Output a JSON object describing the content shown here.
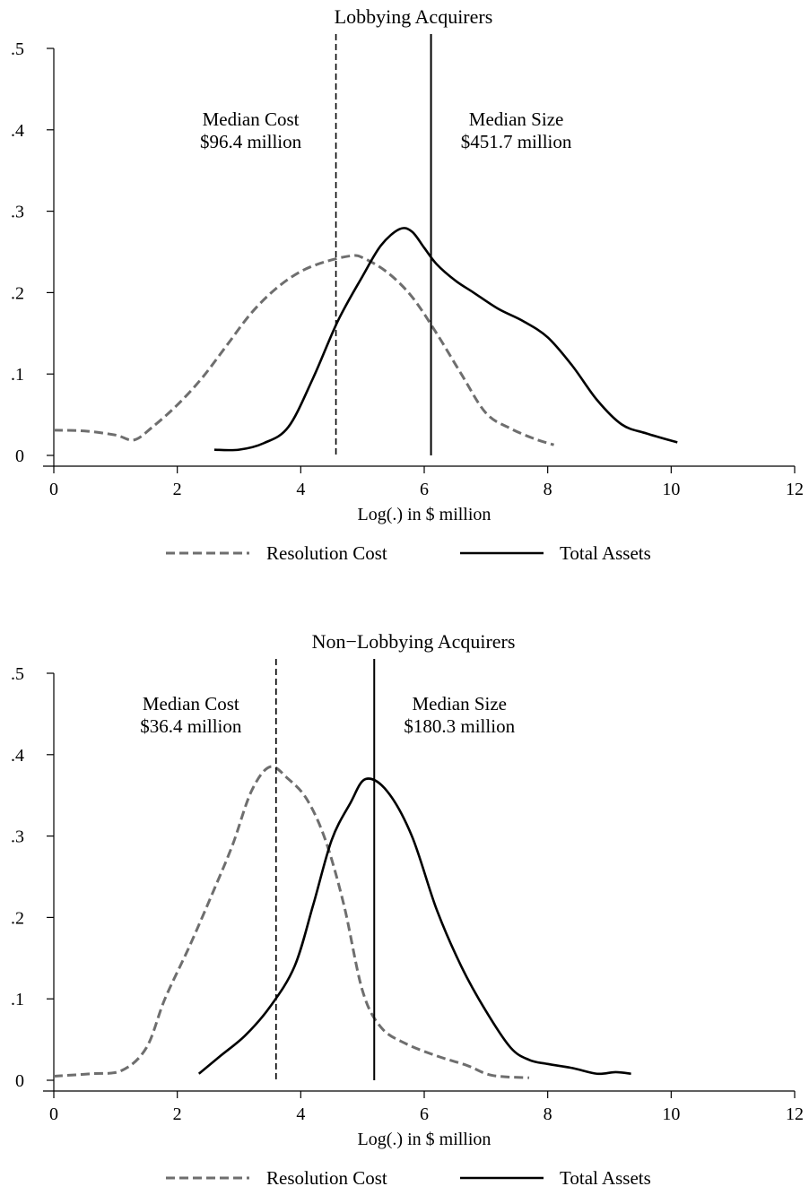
{
  "chart_data": [
    {
      "type": "line",
      "title": "Lobbying Acquirers",
      "xlabel": "Log(.) in $ million",
      "ylabel": "",
      "xlim": [
        0,
        12
      ],
      "ylim": [
        0,
        0.5
      ],
      "xticks": [
        0,
        2,
        4,
        6,
        8,
        10,
        12
      ],
      "xtick_labels": [
        "0",
        "2",
        "4",
        "6",
        "8",
        "10",
        "12"
      ],
      "yticks": [
        0,
        0.1,
        0.2,
        0.3,
        0.4,
        0.5
      ],
      "ytick_labels": [
        "0",
        ".1",
        ".2",
        ".3",
        ".4",
        ".5"
      ],
      "grid": false,
      "legend_position": "bottom",
      "series": [
        {
          "name": "Resolution Cost",
          "style": "dashed",
          "color": "#6e6e6e",
          "x": [
            0,
            0.5,
            1.0,
            1.3,
            1.6,
            2.0,
            2.4,
            2.8,
            3.2,
            3.6,
            4.0,
            4.4,
            4.8,
            5.0,
            5.4,
            5.8,
            6.2,
            6.6,
            7.0,
            7.4,
            7.8,
            8.1
          ],
          "y": [
            0.031,
            0.03,
            0.025,
            0.019,
            0.035,
            0.062,
            0.095,
            0.135,
            0.175,
            0.205,
            0.226,
            0.238,
            0.245,
            0.243,
            0.225,
            0.195,
            0.15,
            0.1,
            0.052,
            0.033,
            0.02,
            0.013
          ]
        },
        {
          "name": "Total Assets",
          "style": "solid",
          "color": "#000000",
          "x": [
            2.6,
            3.0,
            3.4,
            3.8,
            4.2,
            4.6,
            5.0,
            5.3,
            5.6,
            5.8,
            6.0,
            6.2,
            6.5,
            6.8,
            7.2,
            7.6,
            8.0,
            8.4,
            8.8,
            9.2,
            9.6,
            10.1
          ],
          "y": [
            0.007,
            0.007,
            0.015,
            0.035,
            0.095,
            0.165,
            0.22,
            0.258,
            0.278,
            0.275,
            0.255,
            0.235,
            0.215,
            0.2,
            0.18,
            0.165,
            0.145,
            0.11,
            0.068,
            0.038,
            0.027,
            0.016
          ]
        }
      ],
      "annotations": [
        {
          "type": "vline",
          "x": 4.57,
          "style": "dashed",
          "lines": [
            "Median Cost",
            "$96.4 million"
          ]
        },
        {
          "type": "vline",
          "x": 6.11,
          "style": "solid",
          "lines": [
            "Median Size",
            "$451.7 million"
          ]
        }
      ]
    },
    {
      "type": "line",
      "title": "Non−Lobbying Acquirers",
      "xlabel": "Log(.) in $ million",
      "ylabel": "",
      "xlim": [
        0,
        12
      ],
      "ylim": [
        0,
        0.5
      ],
      "xticks": [
        0,
        2,
        4,
        6,
        8,
        10,
        12
      ],
      "xtick_labels": [
        "0",
        "2",
        "4",
        "6",
        "8",
        "10",
        "12"
      ],
      "yticks": [
        0,
        0.1,
        0.2,
        0.3,
        0.4,
        0.5
      ],
      "ytick_labels": [
        "0",
        ".1",
        ".2",
        ".3",
        ".4",
        ".5"
      ],
      "grid": false,
      "legend_position": "bottom",
      "series": [
        {
          "name": "Resolution Cost",
          "style": "dashed",
          "color": "#6e6e6e",
          "x": [
            0,
            0.6,
            1.1,
            1.5,
            1.8,
            2.2,
            2.6,
            2.9,
            3.2,
            3.5,
            3.8,
            4.1,
            4.4,
            4.7,
            5.0,
            5.3,
            5.7,
            6.2,
            6.7,
            7.1,
            7.7
          ],
          "y": [
            0.005,
            0.008,
            0.012,
            0.04,
            0.1,
            0.165,
            0.235,
            0.29,
            0.355,
            0.385,
            0.37,
            0.345,
            0.295,
            0.215,
            0.11,
            0.065,
            0.045,
            0.03,
            0.018,
            0.006,
            0.003
          ]
        },
        {
          "name": "Total Assets",
          "style": "solid",
          "color": "#000000",
          "x": [
            2.35,
            2.7,
            3.1,
            3.5,
            3.9,
            4.2,
            4.5,
            4.8,
            5.05,
            5.4,
            5.8,
            6.2,
            6.6,
            7.0,
            7.4,
            7.7,
            8.0,
            8.4,
            8.8,
            9.1,
            9.35
          ],
          "y": [
            0.008,
            0.03,
            0.055,
            0.09,
            0.14,
            0.215,
            0.295,
            0.34,
            0.37,
            0.355,
            0.3,
            0.21,
            0.14,
            0.085,
            0.04,
            0.025,
            0.02,
            0.015,
            0.008,
            0.01,
            0.008
          ]
        }
      ],
      "annotations": [
        {
          "type": "vline",
          "x": 3.6,
          "style": "dashed",
          "lines": [
            "Median Cost",
            "$36.4 million"
          ]
        },
        {
          "type": "vline",
          "x": 5.19,
          "style": "solid",
          "lines": [
            "Median Size",
            "$180.3 million"
          ]
        }
      ]
    }
  ]
}
